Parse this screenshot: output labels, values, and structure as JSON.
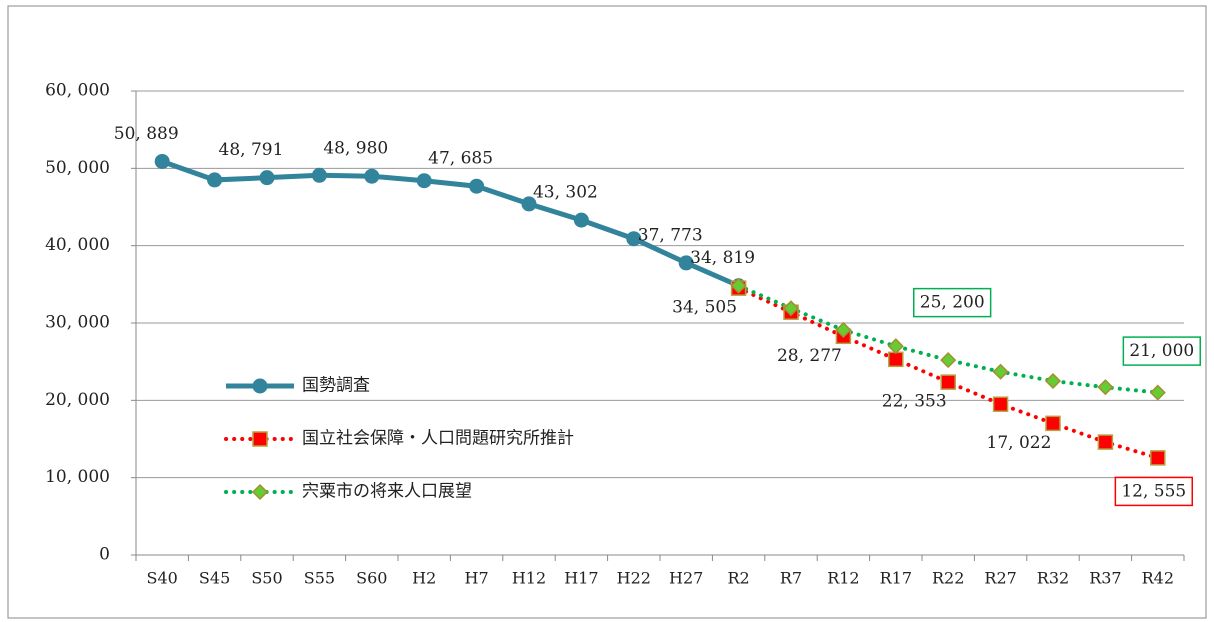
{
  "chart_data": {
    "type": "line",
    "categories": [
      "S40",
      "S45",
      "S50",
      "S55",
      "S60",
      "H2",
      "H7",
      "H12",
      "H17",
      "H22",
      "H27",
      "R2",
      "R7",
      "R12",
      "R17",
      "R22",
      "R27",
      "R32",
      "R37",
      "R42"
    ],
    "series": [
      {
        "name": "国勢調査",
        "color": "#31849b",
        "style": "solid",
        "marker": "circle",
        "values": [
          50889,
          48500,
          48791,
          49100,
          48980,
          48400,
          47685,
          45400,
          43302,
          40900,
          37773,
          34819,
          null,
          null,
          null,
          null,
          null,
          null,
          null,
          null
        ],
        "value_labels": [
          "50, 889",
          null,
          "48, 791",
          null,
          "48, 980",
          null,
          "47, 685",
          null,
          "43, 302",
          null,
          "37, 773",
          "34, 819",
          null,
          null,
          null,
          null,
          null,
          null,
          null,
          null
        ]
      },
      {
        "name": "国立社会保障・人口問題研究所推計",
        "color": "#ff0000",
        "style": "dotted",
        "marker": "square",
        "values": [
          null,
          null,
          null,
          null,
          null,
          null,
          null,
          null,
          null,
          null,
          null,
          34505,
          31400,
          28277,
          25300,
          22353,
          19500,
          17022,
          14600,
          12555
        ],
        "value_labels": [
          null,
          null,
          null,
          null,
          null,
          null,
          null,
          null,
          null,
          null,
          null,
          "34, 505",
          null,
          "28, 277",
          null,
          "22, 353",
          null,
          "17, 022",
          null,
          "12, 555"
        ]
      },
      {
        "name": "宍粟市の将来人口展望",
        "color": "#00b050",
        "style": "dotted",
        "marker": "diamond",
        "values": [
          null,
          null,
          null,
          null,
          null,
          null,
          null,
          null,
          null,
          null,
          null,
          34819,
          31900,
          29100,
          27000,
          25200,
          23700,
          22500,
          21700,
          21000
        ],
        "value_labels": [
          null,
          null,
          null,
          null,
          null,
          null,
          null,
          null,
          null,
          null,
          null,
          null,
          null,
          null,
          null,
          "25, 200",
          null,
          null,
          null,
          "21, 000"
        ]
      }
    ],
    "ylim": [
      0,
      60000
    ],
    "yticks": [
      0,
      {
        "value": 10000,
        "label": "10, 000"
      },
      {
        "value": 20000,
        "label": "20, 000"
      },
      {
        "value": 30000,
        "label": "30, 000"
      },
      {
        "value": 40000,
        "label": "40, 000"
      },
      {
        "value": 50000,
        "label": "50, 000"
      },
      {
        "value": 60000,
        "label": "60, 000"
      }
    ],
    "grid": true,
    "legend": "left"
  }
}
